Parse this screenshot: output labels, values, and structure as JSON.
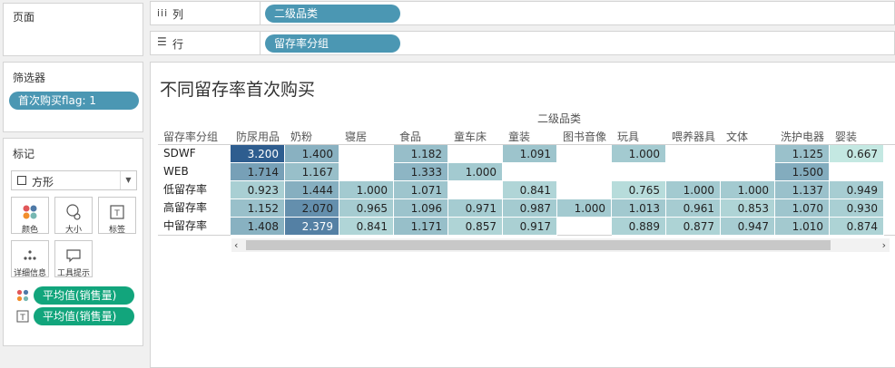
{
  "left_panels": {
    "pages": {
      "title": "页面"
    },
    "filters": {
      "title": "筛选器",
      "pills": [
        "首次购买flag: 1"
      ]
    },
    "marks": {
      "title": "标记",
      "mark_type": "方形",
      "buttons": [
        {
          "label": "颜色",
          "icon": "color-icon"
        },
        {
          "label": "大小",
          "icon": "size-icon"
        },
        {
          "label": "标签",
          "icon": "label-icon"
        },
        {
          "label": "详细信息",
          "icon": "detail-icon"
        },
        {
          "label": "工具提示",
          "icon": "tooltip-icon"
        }
      ],
      "fields": [
        {
          "icon": "color-dots-icon",
          "label": "平均值(销售量)"
        },
        {
          "icon": "text-icon",
          "label": "平均值(销售量)"
        }
      ]
    }
  },
  "shelves": {
    "columns": {
      "label": "列",
      "pill": "二级品类"
    },
    "rows": {
      "label": "行",
      "pill": "留存率分组"
    }
  },
  "view": {
    "title": "不同留存率首次购买",
    "column_field_label": "二级品类",
    "row_field_label": "留存率分组"
  },
  "chart_data": {
    "type": "heatmap",
    "title": "不同留存率首次购买",
    "xlabel": "二级品类",
    "ylabel": "留存率分组",
    "columns": [
      "防尿用品",
      "奶粉",
      "寝居",
      "食品",
      "童车床",
      "童装",
      "图书音像",
      "玩具",
      "喂养器具",
      "文体",
      "洗护电器",
      "婴装"
    ],
    "rows": [
      "SDWF",
      "WEB",
      "低留存率",
      "高留存率",
      "中留存率"
    ],
    "values": [
      [
        3.2,
        1.4,
        null,
        1.182,
        null,
        1.091,
        null,
        1.0,
        null,
        null,
        1.125,
        0.667
      ],
      [
        1.714,
        1.167,
        null,
        1.333,
        1.0,
        null,
        null,
        null,
        null,
        null,
        1.5,
        null
      ],
      [
        0.923,
        1.444,
        1.0,
        1.071,
        null,
        0.841,
        null,
        0.765,
        1.0,
        1.0,
        1.137,
        0.949
      ],
      [
        1.152,
        2.07,
        0.965,
        1.096,
        0.971,
        0.987,
        1.0,
        1.013,
        0.961,
        0.853,
        1.07,
        0.93
      ],
      [
        1.408,
        2.379,
        0.841,
        1.171,
        0.857,
        0.917,
        null,
        0.889,
        0.877,
        0.947,
        1.01,
        0.874
      ]
    ],
    "display": [
      [
        "3.200",
        "1.400",
        "",
        "1.182",
        "",
        "1.091",
        "",
        "1.000",
        "",
        "",
        "1.125",
        "0.667"
      ],
      [
        "1.714",
        "1.167",
        "",
        "1.333",
        "1.000",
        "",
        "",
        "",
        "",
        "",
        "1.500",
        ""
      ],
      [
        "0.923",
        "1.444",
        "1.000",
        "1.071",
        "",
        "0.841",
        "",
        "0.765",
        "1.000",
        "1.000",
        "1.137",
        "0.949"
      ],
      [
        "1.152",
        "2.070",
        "0.965",
        "1.096",
        "0.971",
        "0.987",
        "1.000",
        "1.013",
        "0.961",
        "0.853",
        "1.070",
        "0.930"
      ],
      [
        "1.408",
        "2.379",
        "0.841",
        "1.171",
        "0.857",
        "0.917",
        "",
        "0.889",
        "0.877",
        "0.947",
        "1.010",
        "0.874"
      ]
    ],
    "color_range": {
      "min": 0.667,
      "max": 3.2,
      "low_color": "#c4e8e2",
      "high_color": "#2e5d8f"
    }
  },
  "colors": {
    "pill_blue": "#4b97b3",
    "pill_green": "#12a57c"
  }
}
